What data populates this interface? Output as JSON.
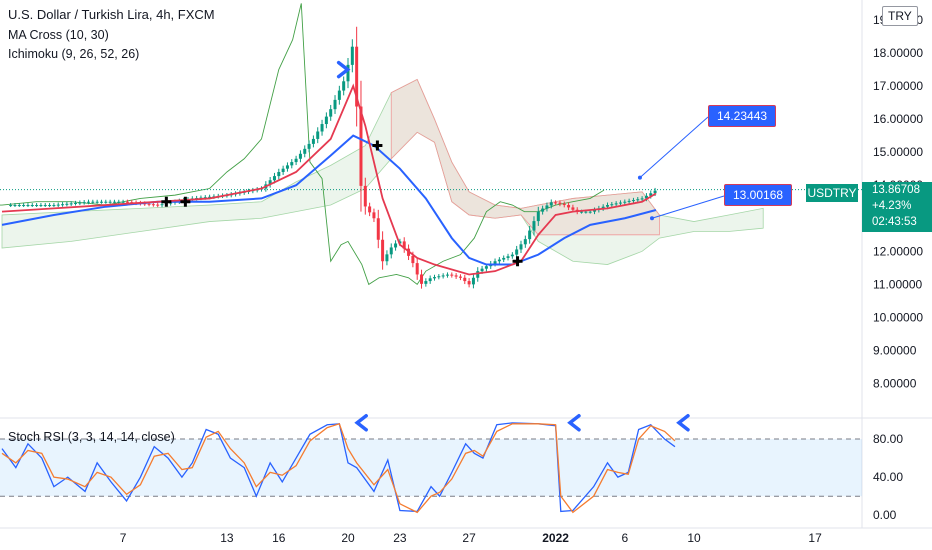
{
  "chart_data": [
    {
      "type": "candlestick",
      "title": "U.S. Dollar / Turkish Lira, 4h, FXCM",
      "symbol": "USDTRY",
      "currency": "TRY",
      "last_price": "13.86708",
      "change": "+4.23%",
      "countdown": "02:43:53",
      "indicators": {
        "ma_cross": "MA Cross (10, 30)",
        "ichimoku": "Ichimoku (9, 26, 52, 26)"
      },
      "annotations": {
        "target_high": "14.23443",
        "target_low": "13.00168"
      },
      "ylim": [
        7.2,
        19.3
      ],
      "y_ticks": [
        "8.00000",
        "9.00000",
        "10.00000",
        "11.00000",
        "12.00000",
        "13.00000",
        "14.00000",
        "15.00000",
        "16.00000",
        "17.00000",
        "18.00000",
        "19.00000"
      ],
      "x_ticks": [
        {
          "label": "7",
          "day": 7
        },
        {
          "label": "13",
          "day": 13
        },
        {
          "label": "16",
          "day": 16
        },
        {
          "label": "20",
          "day": 20
        },
        {
          "label": "23",
          "day": 23
        },
        {
          "label": "27",
          "day": 27
        },
        {
          "label": "2022",
          "day": 32
        },
        {
          "label": "6",
          "day": 36
        },
        {
          "label": "10",
          "day": 40
        },
        {
          "label": "17",
          "day": 47
        }
      ],
      "price_path": [
        [
          1,
          13.4
        ],
        [
          3,
          13.4
        ],
        [
          5,
          13.5
        ],
        [
          7,
          13.5
        ],
        [
          9,
          13.4
        ],
        [
          11,
          13.6
        ],
        [
          13,
          13.7
        ],
        [
          15,
          13.9
        ],
        [
          16,
          14.4
        ],
        [
          17,
          14.8
        ],
        [
          18,
          15.4
        ],
        [
          19,
          16.3
        ],
        [
          19.8,
          17.2
        ],
        [
          20.3,
          18.3
        ],
        [
          20.8,
          13.5
        ],
        [
          21.5,
          13.0
        ],
        [
          22,
          11.7
        ],
        [
          22.6,
          12.2
        ],
        [
          23,
          12.3
        ],
        [
          23.8,
          11.6
        ],
        [
          24.2,
          11.0
        ],
        [
          24.8,
          11.2
        ],
        [
          25.8,
          11.3
        ],
        [
          26.5,
          11.2
        ],
        [
          27,
          11.0
        ],
        [
          27.5,
          11.4
        ],
        [
          28.5,
          11.7
        ],
        [
          29.5,
          11.9
        ],
        [
          30.3,
          12.4
        ],
        [
          31,
          13.2
        ],
        [
          31.8,
          13.5
        ],
        [
          32.5,
          13.4
        ],
        [
          33.2,
          13.2
        ],
        [
          34,
          13.2
        ],
        [
          35,
          13.4
        ],
        [
          36,
          13.5
        ],
        [
          37,
          13.6
        ],
        [
          37.8,
          13.85
        ]
      ],
      "ma_fast": [
        [
          0,
          13.2
        ],
        [
          3,
          13.3
        ],
        [
          6,
          13.4
        ],
        [
          9,
          13.5
        ],
        [
          12,
          13.6
        ],
        [
          15,
          13.9
        ],
        [
          17,
          14.4
        ],
        [
          19,
          15.4
        ],
        [
          20.3,
          17.0
        ],
        [
          21,
          15.8
        ],
        [
          22,
          13.6
        ],
        [
          23,
          12.2
        ],
        [
          24,
          11.8
        ],
        [
          25,
          11.6
        ],
        [
          27,
          11.3
        ],
        [
          28.5,
          11.4
        ],
        [
          30,
          11.7
        ],
        [
          31,
          12.5
        ],
        [
          32,
          13.1
        ],
        [
          33,
          13.2
        ],
        [
          35,
          13.3
        ],
        [
          37,
          13.5
        ],
        [
          37.8,
          13.75
        ]
      ],
      "ma_slow": [
        [
          0,
          12.8
        ],
        [
          3,
          13.1
        ],
        [
          6,
          13.35
        ],
        [
          9,
          13.5
        ],
        [
          12,
          13.5
        ],
        [
          15,
          13.6
        ],
        [
          17,
          14.0
        ],
        [
          19,
          14.9
        ],
        [
          20.3,
          15.5
        ],
        [
          21.5,
          15.2
        ],
        [
          23,
          14.5
        ],
        [
          24.5,
          13.6
        ],
        [
          26,
          12.4
        ],
        [
          27,
          11.8
        ],
        [
          28,
          11.6
        ],
        [
          29.5,
          11.6
        ],
        [
          31,
          11.9
        ],
        [
          32.5,
          12.4
        ],
        [
          34,
          12.8
        ],
        [
          36,
          13.0
        ],
        [
          37.8,
          13.25
        ]
      ],
      "cross_markers": [
        [
          9.5,
          13.5
        ],
        [
          10.6,
          13.5
        ],
        [
          21.7,
          15.2
        ],
        [
          29.8,
          11.7
        ]
      ],
      "rsi_arrows_main": [
        [
          20.5,
          17.8
        ]
      ],
      "cloud_band": [
        [
          0,
          12.1,
          13.1
        ],
        [
          4,
          12.3,
          13.2
        ],
        [
          8,
          12.6,
          13.3
        ],
        [
          12,
          12.9,
          13.4
        ],
        [
          15,
          13.0,
          13.5
        ],
        [
          17,
          13.2,
          14.1
        ],
        [
          19,
          13.4,
          14.6
        ],
        [
          21,
          13.9,
          15.2
        ],
        [
          22.5,
          14.8,
          16.8
        ],
        [
          24,
          15.6,
          17.2
        ],
        [
          25,
          15.3,
          16.0
        ],
        [
          26,
          13.5,
          14.7
        ],
        [
          27,
          13.1,
          13.8
        ],
        [
          28.5,
          13.0,
          13.4
        ],
        [
          30,
          13.1,
          13.3
        ],
        [
          31,
          12.3,
          13.4
        ],
        [
          33,
          11.7,
          13.6
        ],
        [
          35,
          11.6,
          13.7
        ],
        [
          37,
          12.0,
          13.8
        ],
        [
          38,
          12.4,
          13.1
        ],
        [
          40,
          12.6,
          12.9
        ],
        [
          42,
          12.6,
          13.1
        ],
        [
          44,
          12.7,
          13.3
        ]
      ]
    },
    {
      "type": "line",
      "title": "Stoch RSI (3, 3, 14, 14, close)",
      "ylim": [
        -5,
        100
      ],
      "y_ticks": [
        "0.00",
        "40.00",
        "80.00"
      ],
      "bands": [
        20,
        80
      ],
      "series": [
        {
          "name": "K",
          "color": "#2962ff",
          "values": [
            [
              0,
              70
            ],
            [
              0.8,
              50
            ],
            [
              1.5,
              75
            ],
            [
              2.3,
              60
            ],
            [
              3,
              30
            ],
            [
              3.8,
              40
            ],
            [
              4.8,
              25
            ],
            [
              5.5,
              55
            ],
            [
              6.3,
              35
            ],
            [
              7.2,
              15
            ],
            [
              8,
              40
            ],
            [
              8.8,
              72
            ],
            [
              9.6,
              60
            ],
            [
              10.4,
              40
            ],
            [
              11,
              55
            ],
            [
              11.8,
              90
            ],
            [
              12.5,
              85
            ],
            [
              13.2,
              60
            ],
            [
              14,
              50
            ],
            [
              14.7,
              20
            ],
            [
              15.5,
              55
            ],
            [
              16.2,
              35
            ],
            [
              17,
              60
            ],
            [
              17.8,
              85
            ],
            [
              18.8,
              95
            ],
            [
              19.5,
              96
            ],
            [
              20,
              55
            ],
            [
              20.5,
              50
            ],
            [
              21.5,
              25
            ],
            [
              22.3,
              58
            ],
            [
              23,
              5
            ],
            [
              24,
              4
            ],
            [
              24.8,
              30
            ],
            [
              25.3,
              20
            ],
            [
              26,
              45
            ],
            [
              26.8,
              75
            ],
            [
              27.3,
              65
            ],
            [
              27.8,
              60
            ],
            [
              28.6,
              95
            ],
            [
              29.5,
              97
            ],
            [
              31,
              96
            ],
            [
              32,
              94
            ],
            [
              32.3,
              4
            ],
            [
              33,
              5
            ],
            [
              34.2,
              30
            ],
            [
              35,
              55
            ],
            [
              35.6,
              40
            ],
            [
              36.2,
              45
            ],
            [
              36.8,
              90
            ],
            [
              37.5,
              95
            ],
            [
              38.3,
              80
            ],
            [
              38.9,
              72
            ]
          ]
        },
        {
          "name": "D",
          "color": "#f57c30",
          "values": [
            [
              0,
              65
            ],
            [
              0.8,
              55
            ],
            [
              1.5,
              68
            ],
            [
              2.3,
              65
            ],
            [
              3,
              40
            ],
            [
              3.8,
              38
            ],
            [
              4.8,
              30
            ],
            [
              5.5,
              45
            ],
            [
              6.3,
              40
            ],
            [
              7.2,
              22
            ],
            [
              8,
              32
            ],
            [
              8.8,
              62
            ],
            [
              9.6,
              65
            ],
            [
              10.4,
              48
            ],
            [
              11,
              50
            ],
            [
              11.8,
              82
            ],
            [
              12.5,
              88
            ],
            [
              13.2,
              70
            ],
            [
              14,
              55
            ],
            [
              14.7,
              30
            ],
            [
              15.5,
              45
            ],
            [
              16.2,
              42
            ],
            [
              17,
              52
            ],
            [
              17.8,
              78
            ],
            [
              18.8,
              92
            ],
            [
              19.5,
              96
            ],
            [
              20,
              70
            ],
            [
              20.5,
              55
            ],
            [
              21.5,
              32
            ],
            [
              22.3,
              48
            ],
            [
              23,
              12
            ],
            [
              24,
              3
            ],
            [
              24.8,
              20
            ],
            [
              25.3,
              24
            ],
            [
              26,
              38
            ],
            [
              26.8,
              65
            ],
            [
              27.3,
              68
            ],
            [
              27.8,
              62
            ],
            [
              28.6,
              88
            ],
            [
              29.5,
              96
            ],
            [
              31,
              96
            ],
            [
              32,
              95
            ],
            [
              32.3,
              20
            ],
            [
              33,
              3
            ],
            [
              34.2,
              20
            ],
            [
              35,
              48
            ],
            [
              35.6,
              45
            ],
            [
              36.2,
              43
            ],
            [
              36.8,
              80
            ],
            [
              37.5,
              94
            ],
            [
              38.3,
              88
            ],
            [
              38.9,
              78
            ]
          ]
        }
      ],
      "arrows": [
        [
          20.3,
          95
        ],
        [
          32.6,
          95
        ],
        [
          38.9,
          95
        ]
      ]
    }
  ]
}
